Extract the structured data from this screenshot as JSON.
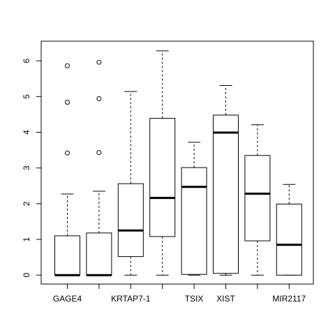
{
  "chart_data": {
    "type": "boxplot",
    "title": "",
    "xlabel": "",
    "ylabel": "",
    "ylim": [
      -0.25,
      6.55
    ],
    "yticks": [
      0,
      1,
      2,
      3,
      4,
      5,
      6
    ],
    "ytick_labels": [
      "0",
      "1",
      "2",
      "3",
      "4",
      "5",
      "6"
    ],
    "categories": [
      "GAGE4",
      "",
      "KRTAP7-1",
      "",
      "TSIX",
      "XIST",
      "",
      "MIR2117"
    ],
    "boxes": [
      {
        "whisker_low": 0,
        "q1": 0,
        "median": 0,
        "q3": 1.1,
        "whisker_high": 2.27,
        "outliers": [
          3.42,
          4.84,
          5.86
        ]
      },
      {
        "whisker_low": 0,
        "q1": 0,
        "median": 0,
        "q3": 1.18,
        "whisker_high": 2.35,
        "outliers": [
          3.43,
          4.94,
          5.96
        ]
      },
      {
        "whisker_low": 0,
        "q1": 0.52,
        "median": 1.25,
        "q3": 2.56,
        "whisker_high": 5.14,
        "outliers": []
      },
      {
        "whisker_low": 0,
        "q1": 1.08,
        "median": 2.16,
        "q3": 4.39,
        "whisker_high": 6.28,
        "outliers": []
      },
      {
        "whisker_low": 0,
        "q1": 0.02,
        "median": 2.47,
        "q3": 3.01,
        "whisker_high": 3.72,
        "outliers": []
      },
      {
        "whisker_low": 0,
        "q1": 0.05,
        "median": 3.99,
        "q3": 4.48,
        "whisker_high": 5.31,
        "outliers": []
      },
      {
        "whisker_low": 0,
        "q1": 0.96,
        "median": 2.28,
        "q3": 3.35,
        "whisker_high": 4.21,
        "outliers": []
      },
      {
        "whisker_low": 0,
        "q1": 0,
        "median": 0.85,
        "q3": 1.99,
        "whisker_high": 2.54,
        "outliers": []
      }
    ],
    "grid": false,
    "legend": "none"
  }
}
